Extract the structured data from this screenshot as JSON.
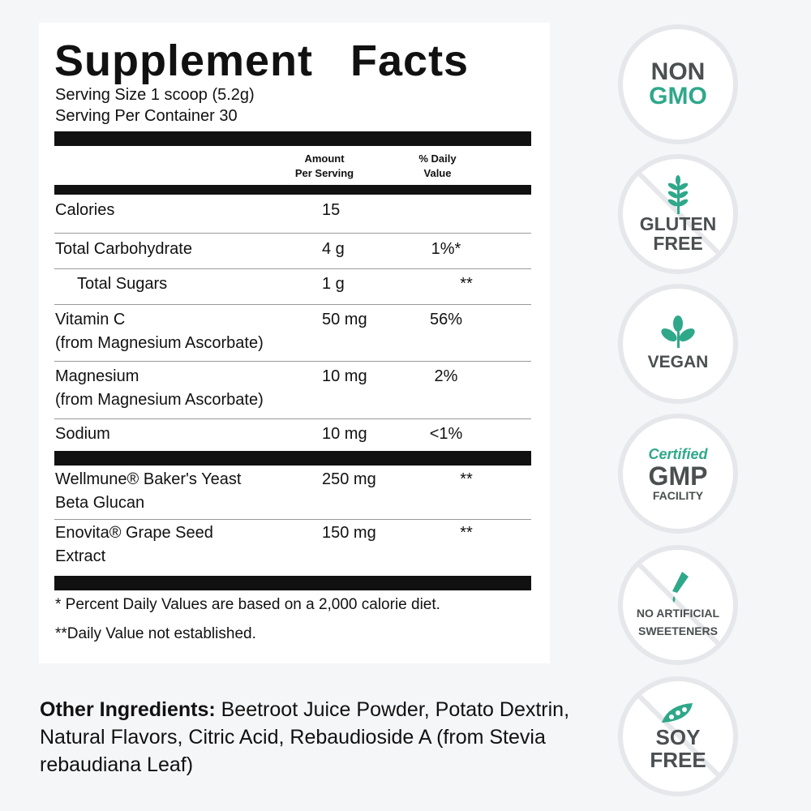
{
  "label": {
    "title": "Supplement Facts",
    "serving_size": "Serving Size 1 scoop (5.2g)",
    "servings_per_container": "Serving Per Container 30",
    "col_amount_1": "Amount",
    "col_amount_2": "Per Serving",
    "col_dv_1": "% Daily",
    "col_dv_2": "Value",
    "rows": [
      {
        "name": "Calories",
        "amount": "15",
        "dv": ""
      },
      {
        "name": "Total Carbohydrate",
        "amount": "4 g",
        "dv": "1%*"
      },
      {
        "name": "Total Sugars",
        "amount": "1 g",
        "dv": "**"
      },
      {
        "name": "Vitamin C",
        "sub": "(from Magnesium Ascorbate)",
        "amount": "50 mg",
        "dv": "56%"
      },
      {
        "name": "Magnesium",
        "sub": "(from Magnesium Ascorbate)",
        "amount": "10 mg",
        "dv": "2%"
      },
      {
        "name": "Sodium",
        "amount": "10 mg",
        "dv": "<1%"
      },
      {
        "name": "Wellmune® Baker's Yeast",
        "sub": "Beta Glucan",
        "amount": "250 mg",
        "dv": "**"
      },
      {
        "name": "Enovita® Grape Seed",
        "sub": "Extract",
        "amount": "150 mg",
        "dv": "**"
      }
    ],
    "footnote_1": "* Percent Daily Values are based on a 2,000 calorie diet.",
    "footnote_2": "**Daily Value not established."
  },
  "other_ingredients": {
    "label": "Other Ingredients:",
    "text": " Beetroot Juice Powder, Potato Dextrin, Natural Flavors, Citric Acid, Rebaudioside A (from Stevia rebaudiana Leaf)"
  },
  "badges": [
    {
      "l1": "NON",
      "l2": "GMO"
    },
    {
      "l1": "GLUTEN",
      "l2": "FREE",
      "icon": "wheat-icon"
    },
    {
      "l1": "VEGAN",
      "icon": "leaf-icon"
    },
    {
      "l0": "Certified",
      "l1": "GMP",
      "l2": "FACILITY"
    },
    {
      "l1": "NO ARTIFICIAL",
      "l2": "SWEETENERS",
      "icon": "dropper-icon"
    },
    {
      "l1": "SOY",
      "l2": "FREE",
      "icon": "soybean-icon"
    }
  ],
  "colors": {
    "accent": "#2fa88a",
    "badge_text": "#4a4f50",
    "background": "#f5f6f8"
  }
}
